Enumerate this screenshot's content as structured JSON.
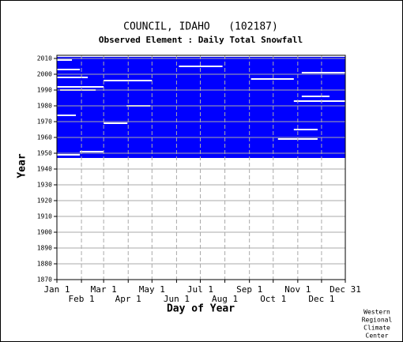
{
  "chart_data": {
    "type": "coverage",
    "title": "COUNCIL, IDAHO   (102187)",
    "subtitle": "Observed Element : Daily Total Snowfall",
    "x_label": "Day of Year",
    "y_label": "Year",
    "credit": [
      "Western",
      "Regional",
      "Climate",
      "Center"
    ],
    "color": "#0000ff",
    "xlim": [
      1,
      365
    ],
    "ylim": [
      1870,
      2012
    ],
    "xticks": [
      {
        "value": 1,
        "label": "Jan 1"
      },
      {
        "value": 32,
        "label": "Feb 1"
      },
      {
        "value": 60,
        "label": "Mar 1"
      },
      {
        "value": 91,
        "label": "Apr 1"
      },
      {
        "value": 121,
        "label": "May 1"
      },
      {
        "value": 152,
        "label": "Jun 1"
      },
      {
        "value": 182,
        "label": "Jul 1"
      },
      {
        "value": 213,
        "label": "Aug 1"
      },
      {
        "value": 244,
        "label": "Sep 1"
      },
      {
        "value": 274,
        "label": "Oct 1"
      },
      {
        "value": 305,
        "label": "Nov 1"
      },
      {
        "value": 335,
        "label": "Dec 1"
      },
      {
        "value": 365,
        "label": "Dec 31"
      }
    ],
    "yticks": [
      1870,
      1880,
      1890,
      1900,
      1910,
      1920,
      1930,
      1940,
      1950,
      1960,
      1970,
      1980,
      1990,
      2000,
      2010
    ],
    "coverage": {
      "years": [
        1947,
        2011
      ],
      "days": [
        1,
        365
      ]
    },
    "gaps": [
      {
        "year": 2009,
        "start": 1,
        "end": 20
      },
      {
        "year": 2005,
        "start": 155,
        "end": 210
      },
      {
        "year": 2003,
        "start": 1,
        "end": 30
      },
      {
        "year": 2001,
        "start": 310,
        "end": 365
      },
      {
        "year": 1998,
        "start": 1,
        "end": 40
      },
      {
        "year": 1997,
        "start": 246,
        "end": 300
      },
      {
        "year": 1996,
        "start": 60,
        "end": 121
      },
      {
        "year": 1992,
        "start": 1,
        "end": 60
      },
      {
        "year": 1990,
        "start": 5,
        "end": 50
      },
      {
        "year": 1986,
        "start": 310,
        "end": 345
      },
      {
        "year": 1983,
        "start": 300,
        "end": 365
      },
      {
        "year": 1980,
        "start": 89,
        "end": 119
      },
      {
        "year": 1974,
        "start": 1,
        "end": 25
      },
      {
        "year": 1969,
        "start": 60,
        "end": 90
      },
      {
        "year": 1965,
        "start": 300,
        "end": 330
      },
      {
        "year": 1959,
        "start": 280,
        "end": 330
      },
      {
        "year": 1951,
        "start": 30,
        "end": 60
      },
      {
        "year": 1949,
        "start": 1,
        "end": 30
      }
    ]
  }
}
